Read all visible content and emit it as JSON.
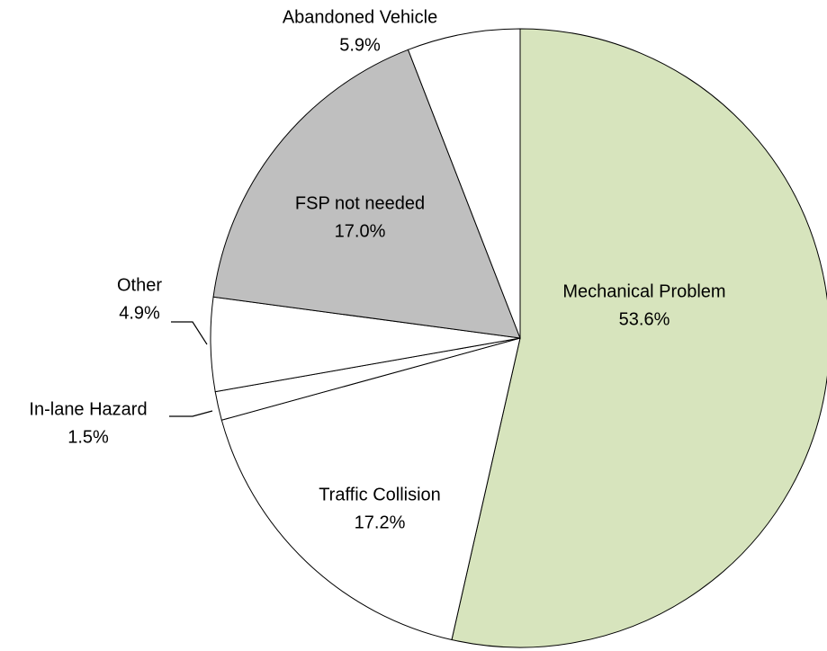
{
  "chart_data": {
    "type": "pie",
    "categories": [
      "Mechanical Problem",
      "Traffic Collision",
      "In-lane Hazard",
      "Other",
      "FSP not needed",
      "Abandoned Vehicle"
    ],
    "values": [
      53.6,
      17.2,
      1.5,
      4.9,
      17.0,
      5.9
    ],
    "value_labels": [
      "53.6%",
      "17.2%",
      "1.5%",
      "4.9%",
      "17.0%",
      "5.9%"
    ],
    "colors": [
      "#d7e4bd",
      "#ffffff",
      "#ffffff",
      "#ffffff",
      "#bfbfbf",
      "#ffffff"
    ]
  }
}
